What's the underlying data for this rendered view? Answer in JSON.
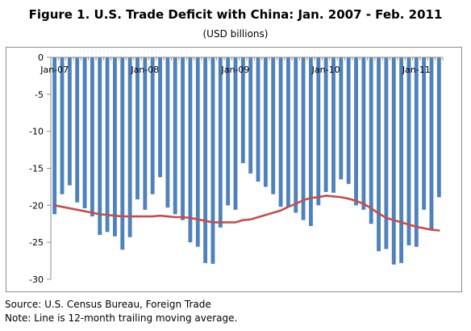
{
  "chart_data": {
    "type": "bar",
    "title": "Figure 1. U.S. Trade Deficit with China: Jan. 2007 - Feb. 2011",
    "subtitle": "(USD billions)",
    "ylim": [
      -30,
      0
    ],
    "yticks": [
      0,
      -5,
      -10,
      -15,
      -20,
      -25,
      -30
    ],
    "x_tick_labels": [
      "Jan-07",
      "Jan-08",
      "Jan-09",
      "Jan-10",
      "Jan-11"
    ],
    "x_tick_indices": [
      0,
      12,
      24,
      36,
      48
    ],
    "grid": false,
    "series": [
      {
        "type": "bar",
        "color": "#4f81bd",
        "values": [
          -21.2,
          -18.5,
          -17.3,
          -19.6,
          -20.4,
          -21.5,
          -24.0,
          -23.6,
          -24.2,
          -26.0,
          -24.3,
          -19.2,
          -20.6,
          -18.5,
          -16.2,
          -20.3,
          -21.2,
          -22.0,
          -25.0,
          -25.6,
          -27.8,
          -27.9,
          -23.0,
          -20.0,
          -20.6,
          -14.3,
          -15.7,
          -16.8,
          -17.5,
          -18.5,
          -20.2,
          -20.2,
          -21.0,
          -22.0,
          -22.8,
          -20.0,
          -18.2,
          -18.3,
          -16.5,
          -17.1,
          -20.0,
          -20.6,
          -22.5,
          -26.2,
          -25.9,
          -28.0,
          -27.8,
          -25.4,
          -25.6,
          -20.6,
          -23.2,
          -18.9
        ]
      },
      {
        "type": "line",
        "color": "#c0504d",
        "values": [
          -20.0,
          -20.2,
          -20.4,
          -20.6,
          -20.8,
          -21.0,
          -21.2,
          -21.3,
          -21.4,
          -21.5,
          -21.5,
          -21.5,
          -21.5,
          -21.5,
          -21.4,
          -21.5,
          -21.6,
          -21.6,
          -21.7,
          -21.9,
          -22.1,
          -22.3,
          -22.3,
          -22.3,
          -22.3,
          -22.0,
          -21.9,
          -21.6,
          -21.3,
          -21.0,
          -20.7,
          -20.2,
          -19.8,
          -19.3,
          -19.0,
          -18.9,
          -18.7,
          -18.8,
          -18.9,
          -19.1,
          -19.4,
          -19.8,
          -20.4,
          -21.1,
          -21.7,
          -22.0,
          -22.3,
          -22.6,
          -22.9,
          -23.1,
          -23.3,
          -23.4
        ]
      }
    ]
  },
  "footer": {
    "source": "Source: U.S. Census Bureau, Foreign Trade",
    "note": "Note: Line is 12-month trailing moving average."
  }
}
